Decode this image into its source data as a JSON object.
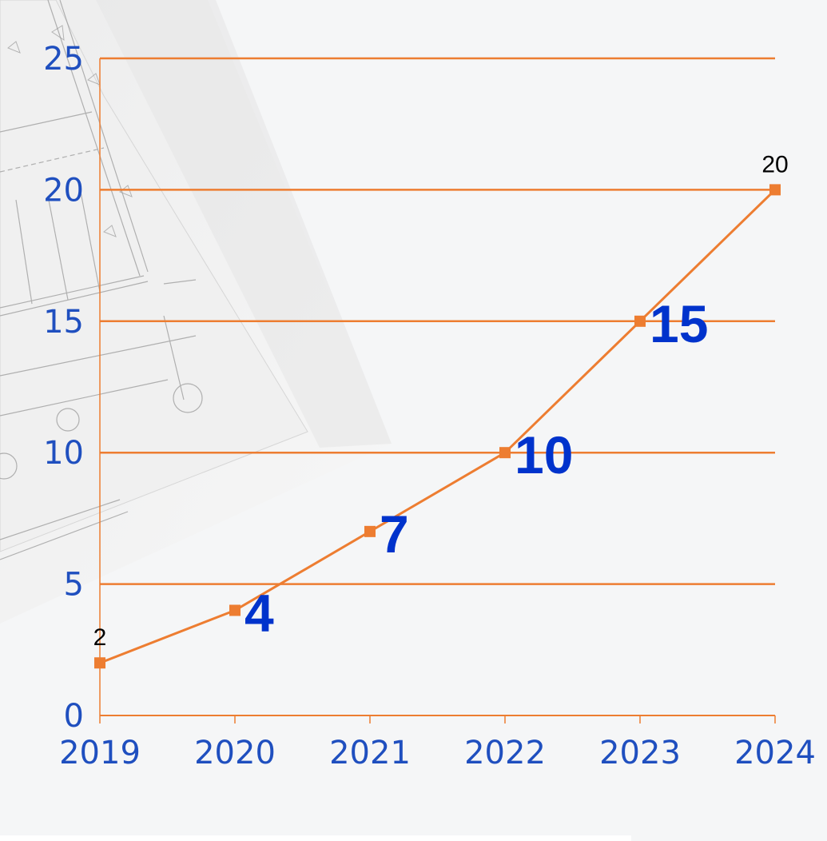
{
  "colors": {
    "line": "#ED7D31",
    "gridline": "#ED7D31",
    "tick_label": "#1F4FBF",
    "big_label": "#0033CC",
    "small_label": "#000000"
  },
  "chart_data": {
    "type": "line",
    "categories": [
      "2019",
      "2020",
      "2021",
      "2022",
      "2023",
      "2024"
    ],
    "values": [
      2,
      4,
      7,
      10,
      15,
      20
    ],
    "data_labels": [
      "2",
      "4",
      "7",
      "10",
      "15",
      "20"
    ],
    "title": "",
    "xlabel": "",
    "ylabel": "",
    "ylim": [
      0,
      25
    ],
    "yticks": [
      "0",
      "5",
      "10",
      "15",
      "20",
      "25"
    ],
    "grid": true,
    "marker": "square",
    "legend": "none"
  }
}
